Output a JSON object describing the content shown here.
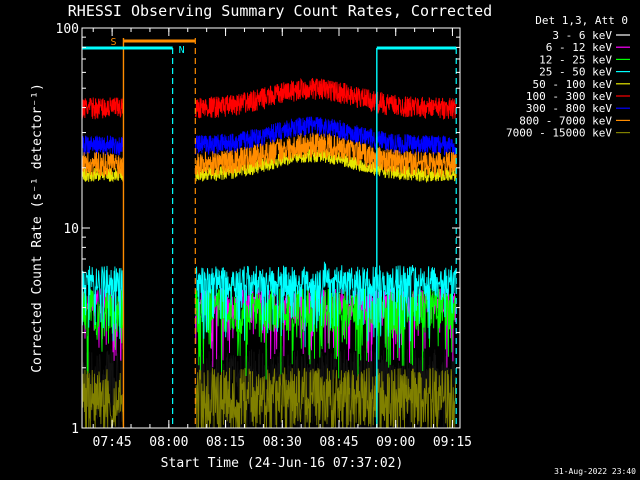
{
  "chart_data": {
    "type": "line",
    "title": "RHESSI Observing Summary Count Rates, Corrected",
    "xlabel": "Start Time (24-Jun-16 07:37:02)",
    "ylabel": "Corrected Count Rate (s⁻¹ detector⁻¹)",
    "y_scale": "log",
    "ylim": [
      1,
      100
    ],
    "xlim": [
      "07:37:02",
      "09:17:00"
    ],
    "x_ticks": [
      "07:45",
      "08:00",
      "08:15",
      "08:30",
      "08:45",
      "09:00",
      "09:15"
    ],
    "y_ticks": [
      "1",
      "10",
      "100"
    ],
    "grid": false,
    "legend_title": "Det 1,3, Att 0",
    "legend_position": "right",
    "footer_date": "31-Aug-2022 23:40",
    "markers": [
      {
        "label": "S",
        "color": "#ff8c00",
        "kind": "SAA",
        "solid_at": "07:48:00",
        "dashed_at": "08:07:00",
        "start": "07:48:00",
        "end": "08:07:00"
      },
      {
        "label": "N",
        "color": "#00ffff",
        "kind": "Night",
        "solid_at": "08:55:00",
        "dashed_at": "08:01:00",
        "segments": [
          [
            "07:37:02",
            "08:01:00"
          ],
          [
            "08:55:00",
            "09:16:00"
          ]
        ],
        "dashed_end": "09:16:00"
      }
    ],
    "data_gap": [
      "07:48:00",
      "08:07:00"
    ],
    "series": [
      {
        "name": "3 - 6 keV",
        "color": "#000000",
        "typical": [
          1.0,
          2.5
        ]
      },
      {
        "name": "6 - 12 keV",
        "color": "#ff00ff",
        "typical": [
          3.5,
          5.0
        ]
      },
      {
        "name": "12 - 25 keV",
        "color": "#00ff00",
        "typical": [
          3.0,
          5.0
        ]
      },
      {
        "name": "25 - 50 keV",
        "color": "#00ffff",
        "typical": [
          4.5,
          6.5
        ]
      },
      {
        "name": "50 - 100 keV",
        "color": "#e6e600",
        "typical": [
          17,
          20
        ]
      },
      {
        "name": "100 - 300 keV",
        "color": "#ff0000",
        "typical": [
          35,
          45
        ]
      },
      {
        "name": "300 - 800 keV",
        "color": "#0000ff",
        "typical": [
          23,
          29
        ]
      },
      {
        "name": "800 - 7000 keV",
        "color": "#ff8c00",
        "typical": [
          18,
          24
        ]
      },
      {
        "name": "7000 - 15000 keV",
        "color": "#808000",
        "typical": [
          1.0,
          2.0
        ]
      }
    ]
  }
}
